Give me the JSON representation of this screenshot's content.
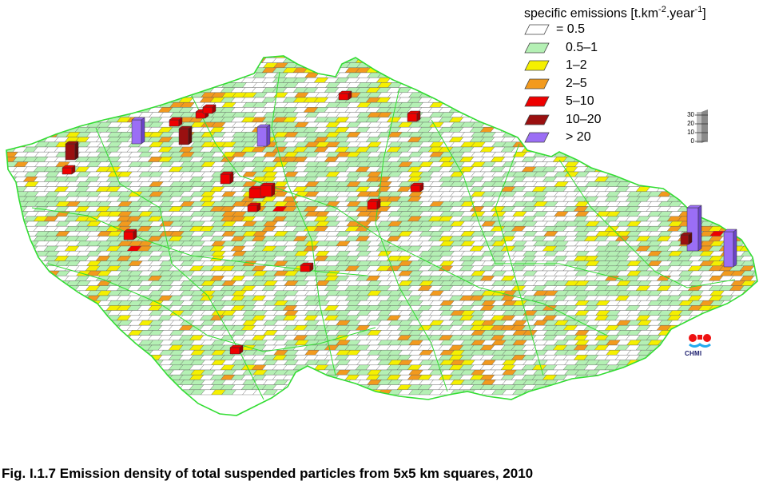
{
  "legend": {
    "title_main": "specific emissions [t.km",
    "title_sup1": "-2",
    "title_mid": ".year",
    "title_sup2": "-1",
    "title_end": "]",
    "items": [
      {
        "label": "= 0.5",
        "color": "#ffffff"
      },
      {
        "label": "0.5–1",
        "color": "#b4f0b4"
      },
      {
        "label": "1–2",
        "color": "#f5f000"
      },
      {
        "label": "2–5",
        "color": "#f29a1e"
      },
      {
        "label": "5–10",
        "color": "#ee0000"
      },
      {
        "label": "10–20",
        "color": "#9a1010"
      },
      {
        "label": "> 20",
        "color": "#9b6ef5"
      }
    ]
  },
  "scale_bar": {
    "ticks": [
      "30",
      "20",
      "10",
      "0"
    ]
  },
  "logo": {
    "text": "CHMI"
  },
  "caption": "Fig. I.1.7  Emission density of total suspended particles from 5x5 km squares, 2010",
  "map": {
    "border_color": "#33dd33",
    "tall_column_color": "#9b6ef5"
  }
}
